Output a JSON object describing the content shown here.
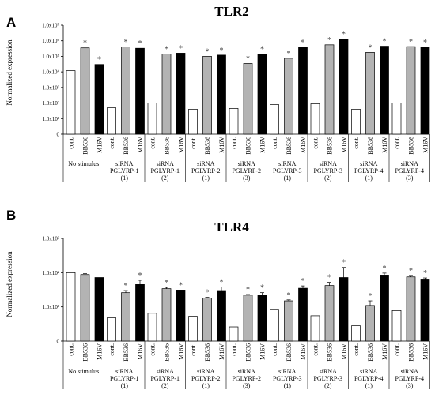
{
  "chart_data": [
    {
      "type": "bar",
      "panel": "A",
      "title": "TLR2",
      "ylabel": "Normalized expression",
      "yscale": "log",
      "ylim": [
        1,
        10000000
      ],
      "yticks": [
        "0",
        "1.0x10¹",
        "1.0x10²",
        "1.0x10³",
        "1.0x10⁴",
        "1.0x10⁵",
        "1.0x10⁶",
        "1.0x10⁷"
      ],
      "bar_labels": [
        "cont.",
        "BB536",
        "M16V"
      ],
      "bar_colors": [
        "#ffffff",
        "#b3b3b3",
        "#000000"
      ],
      "groups": [
        {
          "label": [
            "No stimulus"
          ],
          "values": [
            12000,
            350000,
            30000
          ],
          "stars": [
            false,
            true,
            true
          ]
        },
        {
          "label": [
            "siRNA",
            "PGLYRP-1",
            "(1)"
          ],
          "values": [
            50,
            400000,
            330000
          ],
          "stars": [
            false,
            true,
            true
          ]
        },
        {
          "label": [
            "siRNA",
            "PGLYRP-1",
            "(2)"
          ],
          "values": [
            100,
            140000,
            160000
          ],
          "stars": [
            false,
            true,
            true
          ]
        },
        {
          "label": [
            "siRNA",
            "PGLYRP-2",
            "(1)"
          ],
          "values": [
            40,
            100000,
            120000
          ],
          "stars": [
            false,
            true,
            true
          ]
        },
        {
          "label": [
            "siRNA",
            "PGLYRP-2",
            "(3)"
          ],
          "values": [
            45,
            35000,
            140000
          ],
          "stars": [
            false,
            true,
            true
          ]
        },
        {
          "label": [
            "siRNA",
            "PGLYRP-3",
            "(1)"
          ],
          "values": [
            80,
            75000,
            380000
          ],
          "stars": [
            false,
            true,
            true
          ]
        },
        {
          "label": [
            "siRNA",
            "PGLYRP-3",
            "(2)"
          ],
          "values": [
            90,
            550000,
            1300000
          ],
          "stars": [
            false,
            true,
            true
          ]
        },
        {
          "label": [
            "siRNA",
            "PGLYRP-4",
            "(1)"
          ],
          "values": [
            40,
            180000,
            450000
          ],
          "stars": [
            false,
            true,
            true
          ]
        },
        {
          "label": [
            "siRNA",
            "PGLYRP-4",
            "(3)"
          ],
          "values": [
            100,
            420000,
            370000
          ],
          "stars": [
            false,
            true,
            true
          ]
        }
      ]
    },
    {
      "type": "bar",
      "panel": "B",
      "title": "TLR4",
      "ylabel": "Normalized expression",
      "yscale": "log",
      "ylim": [
        1,
        1000
      ],
      "yticks": [
        "0",
        "1.0x10¹",
        "1.0x10²",
        "1.0x10³"
      ],
      "bar_labels": [
        "cont.",
        "BB536",
        "M16V"
      ],
      "bar_colors": [
        "#ffffff",
        "#b3b3b3",
        "#000000"
      ],
      "groups": [
        {
          "label": [
            "No stimulus"
          ],
          "values": [
            100,
            88,
            72
          ],
          "errors": [
            0,
            6,
            0
          ],
          "stars": [
            false,
            false,
            false
          ]
        },
        {
          "label": [
            "siRNA",
            "PGLYRP-1",
            "(1)"
          ],
          "values": [
            4.8,
            26,
            45
          ],
          "errors": [
            0,
            4,
            15
          ],
          "stars": [
            false,
            true,
            true
          ]
        },
        {
          "label": [
            "siRNA",
            "PGLYRP-1",
            "(2)"
          ],
          "values": [
            6.5,
            34,
            31
          ],
          "errors": [
            0,
            3,
            0
          ],
          "stars": [
            false,
            true,
            true
          ]
        },
        {
          "label": [
            "siRNA",
            "PGLYRP-2",
            "(1)"
          ],
          "values": [
            5.3,
            18,
            30
          ],
          "errors": [
            0,
            1,
            8
          ],
          "stars": [
            false,
            true,
            true
          ]
        },
        {
          "label": [
            "siRNA",
            "PGLYRP-2",
            "(3)"
          ],
          "values": [
            2.6,
            22,
            22
          ],
          "errors": [
            0,
            1,
            4
          ],
          "stars": [
            false,
            true,
            true
          ]
        },
        {
          "label": [
            "siRNA",
            "PGLYRP-3",
            "(1)"
          ],
          "values": [
            8.5,
            15,
            35
          ],
          "errors": [
            0,
            1,
            6
          ],
          "stars": [
            false,
            true,
            true
          ]
        },
        {
          "label": [
            "siRNA",
            "PGLYRP-3",
            "(2)"
          ],
          "values": [
            5.5,
            42,
            72
          ],
          "errors": [
            0,
            10,
            70
          ],
          "stars": [
            false,
            true,
            true
          ]
        },
        {
          "label": [
            "siRNA",
            "PGLYRP-4",
            "(1)"
          ],
          "values": [
            2.8,
            11,
            85
          ],
          "errors": [
            0,
            4,
            12
          ],
          "stars": [
            false,
            true,
            true
          ]
        },
        {
          "label": [
            "siRNA",
            "PGLYRP-4",
            "(3)"
          ],
          "values": [
            7.8,
            75,
            65
          ],
          "errors": [
            0,
            8,
            5
          ],
          "stars": [
            false,
            true,
            true
          ]
        }
      ]
    }
  ]
}
